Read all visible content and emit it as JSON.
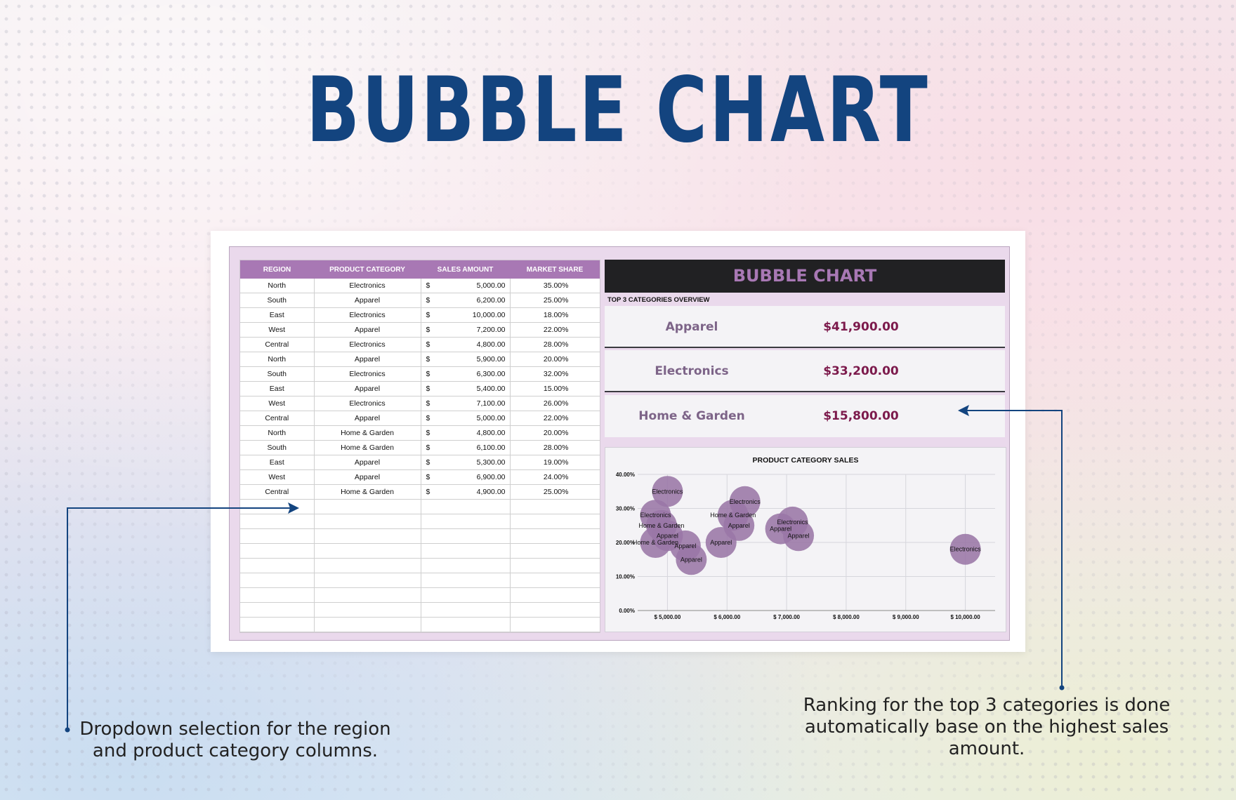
{
  "title": "BUBBLE CHART",
  "table": {
    "headers": [
      "REGION",
      "PRODUCT CATEGORY",
      "SALES AMOUNT",
      "MARKET SHARE"
    ],
    "currency": "$",
    "rows": [
      {
        "region": "North",
        "category": "Electronics",
        "sales": "5,000.00",
        "share": "35.00%"
      },
      {
        "region": "South",
        "category": "Apparel",
        "sales": "6,200.00",
        "share": "25.00%"
      },
      {
        "region": "East",
        "category": "Electronics",
        "sales": "10,000.00",
        "share": "18.00%"
      },
      {
        "region": "West",
        "category": "Apparel",
        "sales": "7,200.00",
        "share": "22.00%"
      },
      {
        "region": "Central",
        "category": "Electronics",
        "sales": "4,800.00",
        "share": "28.00%"
      },
      {
        "region": "North",
        "category": "Apparel",
        "sales": "5,900.00",
        "share": "20.00%"
      },
      {
        "region": "South",
        "category": "Electronics",
        "sales": "6,300.00",
        "share": "32.00%"
      },
      {
        "region": "East",
        "category": "Apparel",
        "sales": "5,400.00",
        "share": "15.00%"
      },
      {
        "region": "West",
        "category": "Electronics",
        "sales": "7,100.00",
        "share": "26.00%"
      },
      {
        "region": "Central",
        "category": "Apparel",
        "sales": "5,000.00",
        "share": "22.00%"
      },
      {
        "region": "North",
        "category": "Home & Garden",
        "sales": "4,800.00",
        "share": "20.00%"
      },
      {
        "region": "South",
        "category": "Home & Garden",
        "sales": "6,100.00",
        "share": "28.00%"
      },
      {
        "region": "East",
        "category": "Apparel",
        "sales": "5,300.00",
        "share": "19.00%"
      },
      {
        "region": "West",
        "category": "Apparel",
        "sales": "6,900.00",
        "share": "24.00%"
      },
      {
        "region": "Central",
        "category": "Home & Garden",
        "sales": "4,900.00",
        "share": "25.00%"
      }
    ]
  },
  "panel": {
    "header": "BUBBLE CHART",
    "overview_label": "TOP 3 CATEGORIES OVERVIEW",
    "top3": [
      {
        "name": "Apparel",
        "value": "$41,900.00"
      },
      {
        "name": "Electronics",
        "value": "$33,200.00"
      },
      {
        "name": "Home & Garden",
        "value": "$15,800.00"
      }
    ]
  },
  "chart_data": {
    "type": "scatter",
    "title": "PRODUCT CATEGORY SALES",
    "xlabel": "",
    "ylabel": "",
    "xlim": [
      4500,
      10500
    ],
    "ylim": [
      0,
      0.4
    ],
    "x_ticks": [
      "$ 5,000.00",
      "$ 6,000.00",
      "$ 7,000.00",
      "$ 8,000.00",
      "$ 9,000.00",
      "$ 10,000.00"
    ],
    "x_tick_values": [
      5000,
      6000,
      7000,
      8000,
      9000,
      10000
    ],
    "y_ticks": [
      "0.00%",
      "10.00%",
      "20.00%",
      "30.00%",
      "40.00%"
    ],
    "y_tick_values": [
      0,
      0.1,
      0.2,
      0.3,
      0.4
    ],
    "grid": true,
    "bubble_color": "#9a76a6",
    "points": [
      {
        "label": "Electronics",
        "x": 5000,
        "y": 0.35
      },
      {
        "label": "Apparel",
        "x": 6200,
        "y": 0.25
      },
      {
        "label": "Electronics",
        "x": 10000,
        "y": 0.18
      },
      {
        "label": "Apparel",
        "x": 7200,
        "y": 0.22
      },
      {
        "label": "Electronics",
        "x": 4800,
        "y": 0.28
      },
      {
        "label": "Apparel",
        "x": 5900,
        "y": 0.2
      },
      {
        "label": "Electronics",
        "x": 6300,
        "y": 0.32
      },
      {
        "label": "Apparel",
        "x": 5400,
        "y": 0.15
      },
      {
        "label": "Electronics",
        "x": 7100,
        "y": 0.26
      },
      {
        "label": "Apparel",
        "x": 5000,
        "y": 0.22
      },
      {
        "label": "Home & Garden",
        "x": 4800,
        "y": 0.2
      },
      {
        "label": "Home & Garden",
        "x": 6100,
        "y": 0.28
      },
      {
        "label": "Apparel",
        "x": 5300,
        "y": 0.19
      },
      {
        "label": "Apparel",
        "x": 6900,
        "y": 0.24
      },
      {
        "label": "Home & Garden",
        "x": 4900,
        "y": 0.25
      }
    ]
  },
  "callouts": {
    "left": "Dropdown selection for the region and product category columns.",
    "right": "Ranking for the top 3 categories is done automatically base on the highest sales amount."
  },
  "colors": {
    "title": "#13447f",
    "table_header": "#a878b4",
    "panel_header_bg": "#212123",
    "rank_value": "#7c1a4c",
    "arrow": "#13447f"
  }
}
